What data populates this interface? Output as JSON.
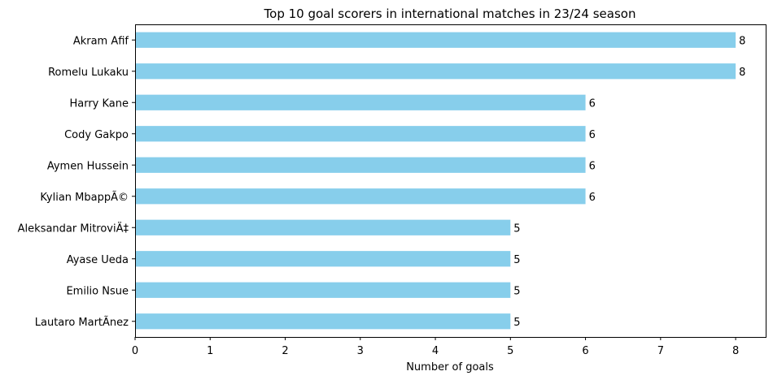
{
  "chart_data": {
    "type": "bar",
    "orientation": "horizontal",
    "title": "Top 10 goal scorers in international matches in 23/24 season",
    "xlabel": "Number of goals",
    "ylabel": "",
    "xlim": [
      0,
      8.4
    ],
    "xticks": [
      0,
      1,
      2,
      3,
      4,
      5,
      6,
      7,
      8
    ],
    "grid": false,
    "bar_color": "#87CEEB",
    "categories": [
      "Akram Afif",
      "Romelu Lukaku",
      "Harry Kane",
      "Cody Gakpo",
      "Aymen Hussein",
      "Kylian MbappÃ©",
      "Aleksandar MitroviÄ‡",
      "Ayase Ueda",
      "Emilio Nsue",
      "Lautaro MartÃ­nez"
    ],
    "values": [
      8,
      8,
      6,
      6,
      6,
      6,
      5,
      5,
      5,
      5
    ],
    "data_labels": [
      "8",
      "8",
      "6",
      "6",
      "6",
      "6",
      "5",
      "5",
      "5",
      "5"
    ]
  }
}
